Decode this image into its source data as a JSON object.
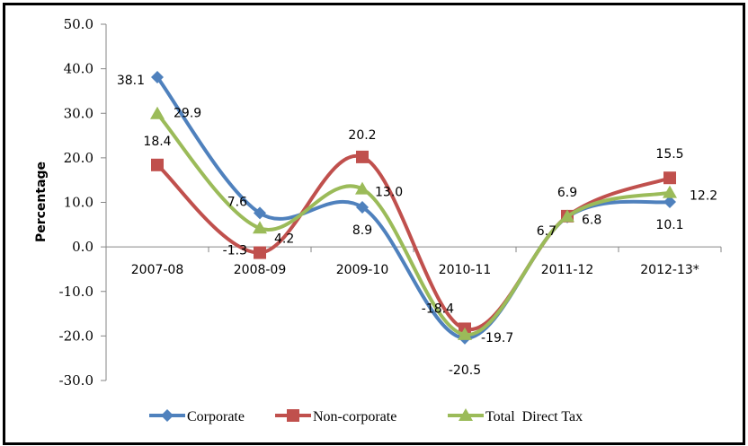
{
  "chart_data": {
    "type": "line",
    "title": "",
    "xlabel": "",
    "ylabel": "Percentage",
    "ylim": [
      -30,
      50
    ],
    "yticks": [
      50,
      40,
      30,
      20,
      10,
      0,
      -10,
      -20,
      -30
    ],
    "ytick_labels": [
      "50.0",
      "40.0",
      "30.0",
      "20.0",
      "10.0",
      "0.0",
      "-10.0",
      "-20.0",
      "-30.0"
    ],
    "categories": [
      "2007-08",
      "2008-09",
      "2009-10",
      "2010-11",
      "2011-12",
      "2012-13*"
    ],
    "grid": false,
    "smooth": true,
    "legend_position": "bottom",
    "series": [
      {
        "name": "Corporate",
        "color": "#4F81BD",
        "marker": "diamond",
        "values": [
          38.1,
          7.6,
          8.9,
          -20.5,
          6.7,
          10.1
        ],
        "labels": [
          "38.1",
          "7.6",
          "8.9",
          "-20.5",
          "6.7",
          "10.1"
        ]
      },
      {
        "name": "Non-corporate",
        "color": "#C0504D",
        "marker": "square",
        "values": [
          18.4,
          -1.3,
          20.2,
          -18.4,
          6.9,
          15.5
        ],
        "labels": [
          "18.4",
          "-1.3",
          "20.2",
          "-18.4",
          "6.9",
          "15.5"
        ]
      },
      {
        "name": "Total  Direct Tax",
        "color": "#9BBB59",
        "marker": "triangle",
        "values": [
          29.9,
          4.2,
          13.0,
          -19.7,
          6.8,
          12.2
        ],
        "labels": [
          "29.9",
          "4.2",
          "13.0",
          "-19.7",
          "6.8",
          "12.2"
        ]
      }
    ]
  }
}
